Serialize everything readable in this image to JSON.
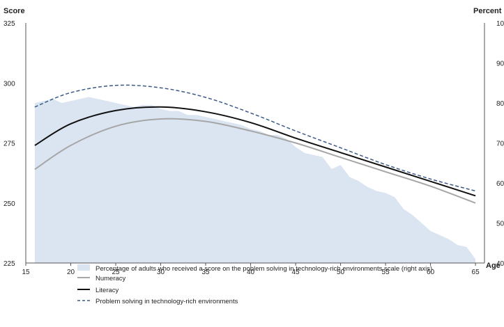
{
  "chart_data": {
    "type": "line",
    "title": "",
    "ylabel": "Score",
    "y2label": "Percent",
    "xlabel": "Age",
    "xlim": [
      15,
      66
    ],
    "ylim": [
      225,
      325
    ],
    "y2lim": [
      40,
      100
    ],
    "xticks": [
      15,
      20,
      25,
      30,
      35,
      40,
      45,
      50,
      55,
      60,
      65
    ],
    "yticks": [
      225,
      250,
      275,
      300,
      325
    ],
    "y2ticks": [
      40,
      50,
      60,
      70,
      80,
      90,
      100
    ],
    "grid": false,
    "legend_position": "bottom",
    "area": {
      "name": "Percentage of adults who received a score on the poblem solving in technology-rich environments scale (right axis)",
      "axis": "right",
      "color": "#dbe5f2",
      "x": [
        16,
        17,
        18,
        19,
        20,
        21,
        22,
        23,
        24,
        25,
        26,
        27,
        28,
        29,
        30,
        31,
        32,
        33,
        34,
        35,
        36,
        37,
        38,
        39,
        40,
        41,
        42,
        43,
        44,
        45,
        46,
        47,
        48,
        49,
        50,
        51,
        52,
        53,
        54,
        55,
        56,
        57,
        58,
        59,
        60,
        61,
        62,
        63,
        64,
        65
      ],
      "values": [
        80,
        80.5,
        81,
        80,
        80.5,
        81,
        81.5,
        81,
        80.5,
        80,
        79.5,
        79,
        79.5,
        79.5,
        78.5,
        78,
        78,
        77,
        77,
        76.5,
        76,
        75.5,
        75,
        74.5,
        73.5,
        73,
        72,
        72,
        71,
        69,
        67.5,
        67,
        66.5,
        63.5,
        64.5,
        61.5,
        60.5,
        59,
        58,
        57.5,
        56.5,
        53.5,
        52,
        50,
        48,
        47,
        46,
        44.5,
        44,
        41
      ]
    },
    "series": [
      {
        "name": "Numeracy",
        "axis": "left",
        "style": "solid",
        "color": "#a6a6a6",
        "x": [
          16,
          20,
          25,
          30,
          35,
          40,
          45,
          50,
          55,
          60,
          65
        ],
        "values": [
          264,
          274,
          282,
          285,
          284,
          280,
          275,
          269,
          263,
          257,
          250
        ]
      },
      {
        "name": "Literacy",
        "axis": "left",
        "style": "solid",
        "color": "#111111",
        "x": [
          16,
          20,
          25,
          30,
          35,
          40,
          45,
          50,
          55,
          60,
          65
        ],
        "values": [
          274,
          283,
          288.5,
          290,
          288,
          283.5,
          277,
          271,
          265,
          259,
          253
        ]
      },
      {
        "name": "Problem solving in technology-rich environments",
        "axis": "left",
        "style": "dashed",
        "color": "#3b5a86",
        "x": [
          16,
          20,
          25,
          30,
          35,
          40,
          45,
          50,
          55,
          60,
          65
        ],
        "values": [
          290,
          296,
          299,
          298,
          294,
          287.5,
          280,
          273,
          266,
          260,
          255
        ]
      }
    ]
  }
}
